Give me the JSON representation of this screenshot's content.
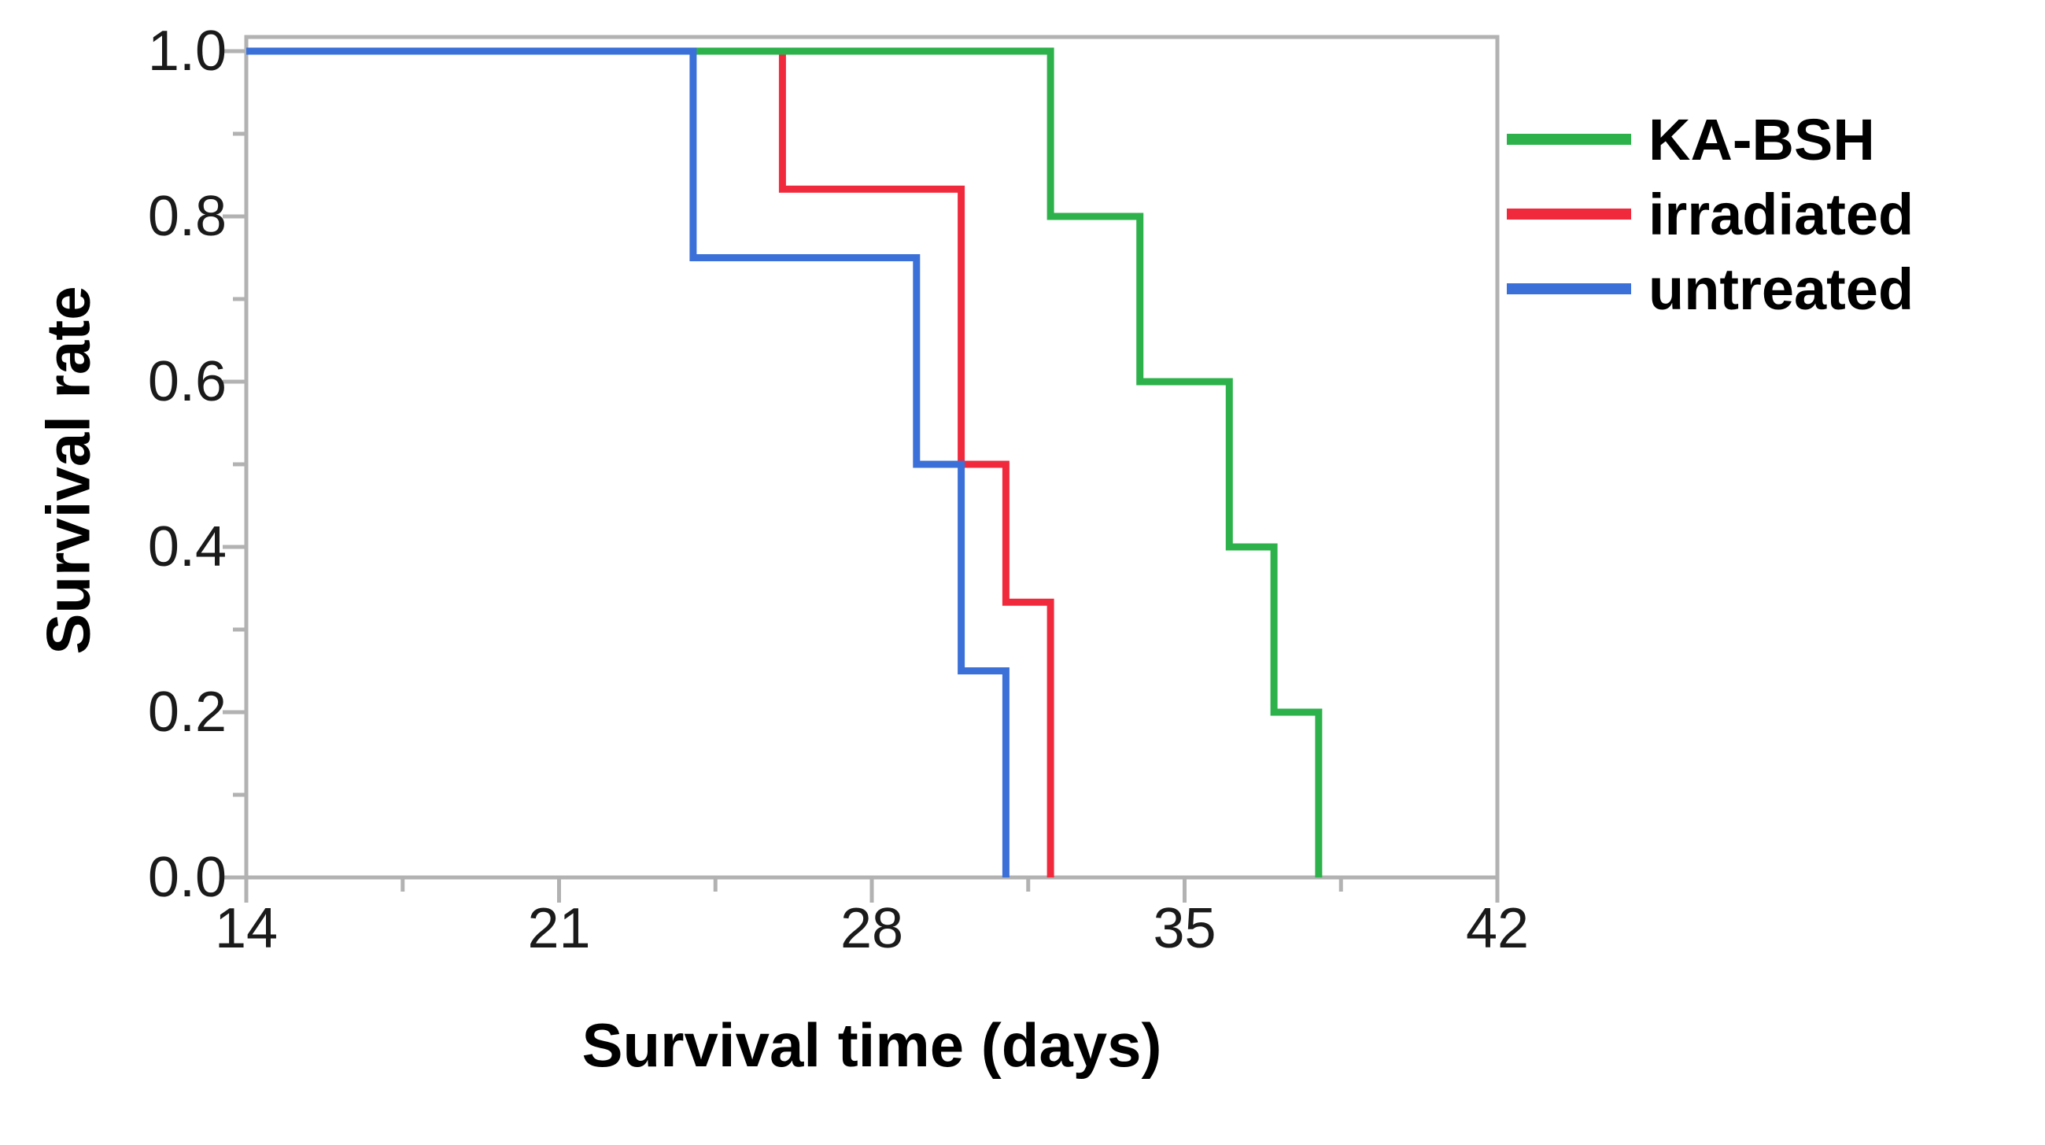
{
  "chart_data": {
    "type": "line",
    "subtype": "kaplan-meier-step-survival",
    "title": "",
    "xlabel": "Survival time (days)",
    "ylabel": "Survival rate",
    "xlim": [
      14,
      42
    ],
    "ylim": [
      0.0,
      1.0
    ],
    "grid": false,
    "legend_position": "outside-top-right",
    "x_ticks": [
      14,
      21,
      28,
      35,
      42
    ],
    "x_tick_labels": [
      "14",
      "21",
      "28",
      "35",
      "42"
    ],
    "x_minor_ticks": [
      17.5,
      24.5,
      31.5,
      38.5
    ],
    "y_ticks": [
      1.0,
      0.8,
      0.6,
      0.4,
      0.2,
      0.0
    ],
    "y_tick_labels": [
      "1.0",
      "0.8",
      "0.6",
      "0.4",
      "0.2",
      "0.0"
    ],
    "y_minor_ticks": [
      0.9,
      0.7,
      0.5,
      0.3,
      0.1
    ],
    "series": [
      {
        "name": "irradiated",
        "color": "#f02a3c",
        "points": [
          [
            14,
            1.0
          ],
          [
            26,
            1.0
          ],
          [
            26,
            0.833
          ],
          [
            30,
            0.833
          ],
          [
            30,
            0.5
          ],
          [
            31,
            0.5
          ],
          [
            31,
            0.333
          ],
          [
            32,
            0.333
          ],
          [
            32,
            0.0
          ]
        ]
      },
      {
        "name": "KA-BSH",
        "color": "#2db24b",
        "points": [
          [
            14,
            1.0
          ],
          [
            32,
            1.0
          ],
          [
            32,
            0.8
          ],
          [
            34,
            0.8
          ],
          [
            34,
            0.6
          ],
          [
            36,
            0.6
          ],
          [
            36,
            0.4
          ],
          [
            37,
            0.4
          ],
          [
            37,
            0.2
          ],
          [
            38,
            0.2
          ],
          [
            38,
            0.0
          ]
        ]
      },
      {
        "name": "untreated",
        "color": "#3b70d8",
        "points": [
          [
            14,
            1.0
          ],
          [
            24,
            1.0
          ],
          [
            24,
            0.75
          ],
          [
            29,
            0.75
          ],
          [
            29,
            0.5
          ],
          [
            30,
            0.5
          ],
          [
            30,
            0.25
          ],
          [
            31,
            0.25
          ],
          [
            31,
            0.0
          ]
        ]
      }
    ]
  },
  "axes": {
    "x_title": "Survival time (days)",
    "y_title": "Survival rate"
  },
  "legend": {
    "items": [
      {
        "label": "KA-BSH",
        "color": "#2db24b"
      },
      {
        "label": "irradiated",
        "color": "#f02a3c"
      },
      {
        "label": "untreated",
        "color": "#3b70d8"
      }
    ]
  },
  "colors": {
    "plot_border": "#b2b2b2",
    "tick": "#b2b2b2",
    "background": "#ffffff",
    "text": "#000000"
  }
}
